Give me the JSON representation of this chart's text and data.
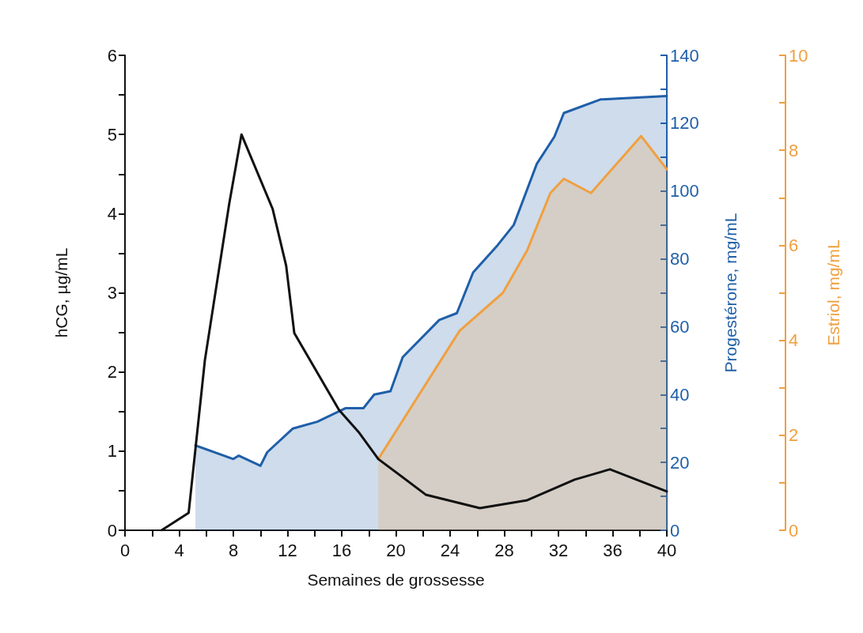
{
  "chart_data": {
    "type": "line",
    "xlabel": "Semaines de grossesse",
    "ylabel": "hCG, µg/mL",
    "y2label": "Progestérone, mg/mL",
    "y3label": "Estriol, mg/mL",
    "xlim": [
      0,
      40
    ],
    "xticks": [
      0,
      4,
      8,
      12,
      16,
      20,
      24,
      28,
      32,
      36,
      40
    ],
    "ylim": [
      0,
      6
    ],
    "yticks": [
      0,
      1,
      2,
      3,
      4,
      5,
      6
    ],
    "y2lim": [
      0,
      140
    ],
    "y2ticks": [
      0,
      20,
      40,
      60,
      80,
      100,
      120,
      140
    ],
    "y3lim": [
      0,
      10
    ],
    "y3ticks": [
      0,
      2,
      4,
      6,
      8,
      10
    ],
    "grid": false,
    "marker": "none",
    "line_style": "solid",
    "series": [
      {
        "type": "area",
        "axis": "y2",
        "color": "#1f5fa8",
        "x": [
          5.2,
          8.0,
          8.4,
          10.0,
          10.5,
          12.4,
          14.2,
          16.3,
          17.6,
          18.4,
          19.6,
          20.5,
          23.2,
          24.5,
          25.7,
          27.5,
          28.7,
          30.4,
          31.7,
          32.4,
          35.1,
          40
        ],
        "values": [
          25,
          21,
          22,
          19,
          23,
          30,
          32,
          36,
          36,
          40,
          41,
          51,
          62,
          64,
          76,
          84,
          90,
          108,
          116,
          123,
          127,
          128
        ]
      },
      {
        "type": "area",
        "axis": "y3",
        "color": "#f0a040",
        "x": [
          18.7,
          24.7,
          27.9,
          29.7,
          31.4,
          32.4,
          34.4,
          38.1,
          40
        ],
        "values": [
          1.5,
          4.2,
          5.0,
          5.9,
          7.1,
          7.4,
          7.1,
          8.3,
          7.6
        ]
      },
      {
        "type": "line",
        "color": "#111111",
        "x": [
          2.7,
          4.7,
          5.9,
          7.7,
          8.6,
          10.9,
          11.9,
          12.5,
          15.8,
          17.3,
          18.7,
          22.2,
          26.2,
          29.7,
          33.2,
          35.8,
          40
        ],
        "values": [
          0,
          0.22,
          2.15,
          4.13,
          5.0,
          4.06,
          3.34,
          2.49,
          1.52,
          1.23,
          0.9,
          0.45,
          0.28,
          0.38,
          0.64,
          0.77,
          0.49
        ]
      }
    ]
  }
}
